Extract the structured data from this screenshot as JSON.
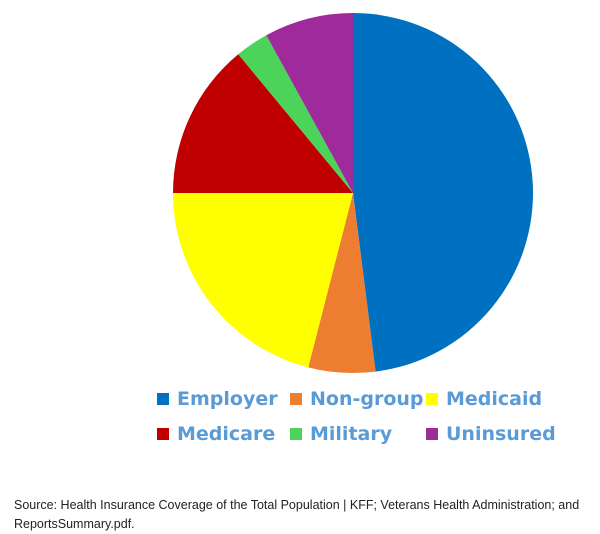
{
  "chart_data": {
    "type": "pie",
    "title": "",
    "unit": "percent",
    "start_angle": "top",
    "direction": "clockwise",
    "legend_position": "bottom",
    "slices": [
      {
        "label": "Employer",
        "value": 48,
        "color": "#0070c0"
      },
      {
        "label": "Non-group",
        "value": 6,
        "color": "#ed7d31"
      },
      {
        "label": "Medicaid",
        "value": 21,
        "color": "#ffff00"
      },
      {
        "label": "Medicare",
        "value": 14,
        "color": "#c00000"
      },
      {
        "label": "Military",
        "value": 3,
        "color": "#4cd35a"
      },
      {
        "label": "Uninsured",
        "value": 8,
        "color": "#9e2a9c"
      }
    ]
  },
  "source_text": "Source: Health Insurance Coverage of the Total Population | KFF; Veterans Health Administration; and ReportsSummary.pdf."
}
